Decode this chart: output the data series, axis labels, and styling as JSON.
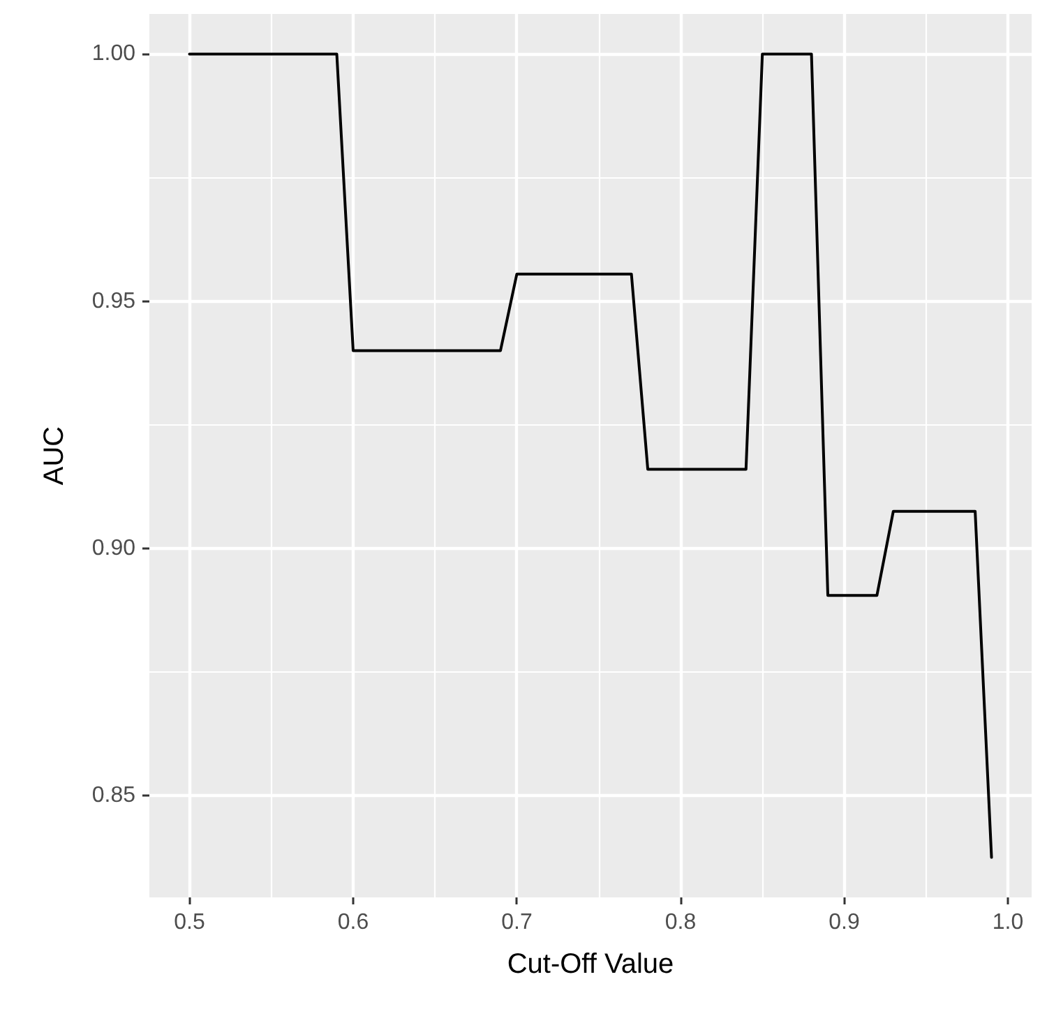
{
  "chart_data": {
    "type": "line",
    "xlabel": "Cut-Off Value",
    "ylabel": "AUC",
    "x": [
      0.5,
      0.59,
      0.6,
      0.69,
      0.7,
      0.77,
      0.78,
      0.84,
      0.85,
      0.88,
      0.89,
      0.92,
      0.93,
      0.98,
      0.99
    ],
    "series": [
      {
        "color": "#000000",
        "values": [
          1.0,
          1.0,
          0.94,
          0.94,
          0.9555,
          0.9555,
          0.916,
          0.916,
          1.0,
          1.0,
          0.8905,
          0.8905,
          0.9075,
          0.9075,
          0.8375
        ]
      }
    ],
    "xlim": [
      0.4755,
      1.0145
    ],
    "xticks": [
      {
        "value": 0.5,
        "label": "0.5"
      },
      {
        "value": 0.55,
        "label": null
      },
      {
        "value": 0.6,
        "label": "0.6"
      },
      {
        "value": 0.65,
        "label": null
      },
      {
        "value": 0.7,
        "label": "0.7"
      },
      {
        "value": 0.75,
        "label": null
      },
      {
        "value": 0.8,
        "label": "0.8"
      },
      {
        "value": 0.85,
        "label": null
      },
      {
        "value": 0.9,
        "label": "0.9"
      },
      {
        "value": 0.95,
        "label": null
      },
      {
        "value": 1.0,
        "label": "1.0"
      }
    ],
    "ylim": [
      0.8294,
      1.0081
    ],
    "yticks": [
      {
        "value": 0.85,
        "label": "0.85"
      },
      {
        "value": 0.875,
        "label": null
      },
      {
        "value": 0.9,
        "label": "0.90"
      },
      {
        "value": 0.925,
        "label": null
      },
      {
        "value": 0.95,
        "label": "0.95"
      },
      {
        "value": 0.975,
        "label": null
      },
      {
        "value": 1.0,
        "label": "1.00"
      }
    ],
    "grid": true,
    "marker": "none",
    "line_style": "solid"
  }
}
